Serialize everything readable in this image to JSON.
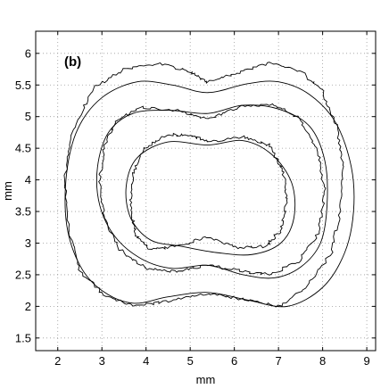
{
  "chart_data": {
    "type": "line",
    "panel_label": "(b)",
    "xlabel": "mm",
    "ylabel": "mm",
    "xlim": [
      1.5,
      9.2
    ],
    "ylim": [
      1.3,
      6.35
    ],
    "x_ticks": [
      2,
      3,
      4,
      5,
      6,
      7,
      8,
      9
    ],
    "x_tick_labels": [
      "2",
      "3",
      "4",
      "5",
      "6",
      "7",
      "8",
      "9"
    ],
    "y_ticks": [
      1.5,
      2,
      2.5,
      3,
      3.5,
      4,
      4.5,
      5,
      5.5,
      6
    ],
    "y_tick_labels": [
      "1.5",
      "2",
      "2.5",
      "3",
      "3.5",
      "4",
      "4.5",
      "5",
      "5.5",
      "6"
    ],
    "grid": true,
    "series": [
      {
        "style": "smooth",
        "points": [
          [
            5.4,
            5.38
          ],
          [
            6.3,
            5.52
          ],
          [
            7.0,
            5.55
          ],
          [
            7.7,
            5.35
          ],
          [
            8.3,
            4.9
          ],
          [
            8.65,
            4.2
          ],
          [
            8.7,
            3.5
          ],
          [
            8.5,
            2.85
          ],
          [
            8.0,
            2.3
          ],
          [
            7.2,
            2.0
          ],
          [
            6.3,
            2.1
          ],
          [
            5.4,
            2.22
          ],
          [
            4.5,
            2.15
          ],
          [
            3.7,
            2.05
          ],
          [
            3.0,
            2.25
          ],
          [
            2.5,
            2.65
          ],
          [
            2.2,
            3.3
          ],
          [
            2.2,
            4.1
          ],
          [
            2.45,
            4.8
          ],
          [
            3.0,
            5.3
          ],
          [
            3.8,
            5.55
          ],
          [
            4.6,
            5.5
          ],
          [
            5.4,
            5.38
          ]
        ]
      },
      {
        "style": "rough",
        "points": [
          [
            5.4,
            5.55
          ],
          [
            6.1,
            5.7
          ],
          [
            6.8,
            5.85
          ],
          [
            7.5,
            5.72
          ],
          [
            8.0,
            5.4
          ],
          [
            8.3,
            4.9
          ],
          [
            8.45,
            4.25
          ],
          [
            8.4,
            3.5
          ],
          [
            8.2,
            2.85
          ],
          [
            7.7,
            2.35
          ],
          [
            7.0,
            2.0
          ],
          [
            6.3,
            2.1
          ],
          [
            5.4,
            2.2
          ],
          [
            4.6,
            2.1
          ],
          [
            3.8,
            2.0
          ],
          [
            3.1,
            2.15
          ],
          [
            2.5,
            2.55
          ],
          [
            2.25,
            3.2
          ],
          [
            2.15,
            4.0
          ],
          [
            2.35,
            4.8
          ],
          [
            2.8,
            5.45
          ],
          [
            3.5,
            5.75
          ],
          [
            4.3,
            5.85
          ],
          [
            5.0,
            5.7
          ],
          [
            5.4,
            5.55
          ]
        ]
      },
      {
        "style": "smooth",
        "points": [
          [
            5.4,
            5.05
          ],
          [
            6.2,
            5.18
          ],
          [
            7.0,
            5.12
          ],
          [
            7.7,
            4.85
          ],
          [
            8.05,
            4.3
          ],
          [
            8.1,
            3.6
          ],
          [
            7.95,
            3.0
          ],
          [
            7.5,
            2.62
          ],
          [
            6.9,
            2.45
          ],
          [
            6.2,
            2.5
          ],
          [
            5.4,
            2.65
          ],
          [
            4.6,
            2.6
          ],
          [
            3.9,
            2.75
          ],
          [
            3.3,
            3.1
          ],
          [
            2.95,
            3.6
          ],
          [
            2.9,
            4.2
          ],
          [
            3.15,
            4.75
          ],
          [
            3.7,
            5.05
          ],
          [
            4.5,
            5.1
          ],
          [
            5.4,
            5.05
          ]
        ]
      },
      {
        "style": "rough",
        "points": [
          [
            5.4,
            4.95
          ],
          [
            6.1,
            5.15
          ],
          [
            6.9,
            5.2
          ],
          [
            7.5,
            4.95
          ],
          [
            7.9,
            4.45
          ],
          [
            8.05,
            3.8
          ],
          [
            7.9,
            3.15
          ],
          [
            7.45,
            2.7
          ],
          [
            6.8,
            2.5
          ],
          [
            6.2,
            2.55
          ],
          [
            5.4,
            2.65
          ],
          [
            4.7,
            2.55
          ],
          [
            4.0,
            2.6
          ],
          [
            3.4,
            2.9
          ],
          [
            3.05,
            3.4
          ],
          [
            2.95,
            4.0
          ],
          [
            3.05,
            4.55
          ],
          [
            3.35,
            4.95
          ],
          [
            3.9,
            5.15
          ],
          [
            4.7,
            5.1
          ],
          [
            5.4,
            4.95
          ]
        ]
      },
      {
        "style": "smooth",
        "points": [
          [
            5.4,
            4.55
          ],
          [
            6.2,
            4.62
          ],
          [
            6.85,
            4.4
          ],
          [
            7.3,
            3.95
          ],
          [
            7.35,
            3.4
          ],
          [
            7.05,
            3.0
          ],
          [
            6.4,
            2.82
          ],
          [
            5.6,
            2.85
          ],
          [
            4.8,
            2.95
          ],
          [
            4.1,
            3.05
          ],
          [
            3.65,
            3.4
          ],
          [
            3.55,
            3.9
          ],
          [
            3.8,
            4.35
          ],
          [
            4.5,
            4.6
          ],
          [
            5.4,
            4.55
          ]
        ]
      },
      {
        "style": "rough",
        "points": [
          [
            5.4,
            4.6
          ],
          [
            6.2,
            4.68
          ],
          [
            6.8,
            4.55
          ],
          [
            7.1,
            4.15
          ],
          [
            7.2,
            3.7
          ],
          [
            7.05,
            3.2
          ],
          [
            6.7,
            2.95
          ],
          [
            6.1,
            2.92
          ],
          [
            5.4,
            3.1
          ],
          [
            4.7,
            2.95
          ],
          [
            4.1,
            2.9
          ],
          [
            3.75,
            3.15
          ],
          [
            3.65,
            3.6
          ],
          [
            3.7,
            4.1
          ],
          [
            3.95,
            4.5
          ],
          [
            4.5,
            4.72
          ],
          [
            5.0,
            4.7
          ],
          [
            5.4,
            4.6
          ]
        ]
      }
    ]
  }
}
